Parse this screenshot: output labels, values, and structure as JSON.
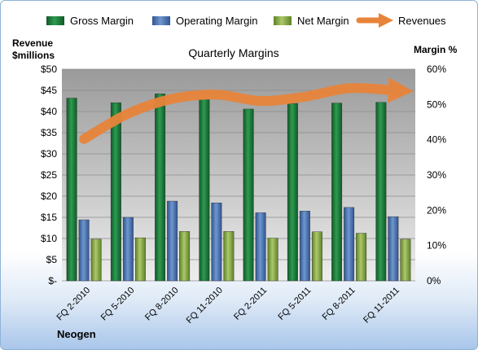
{
  "chart_data": {
    "type": "bar",
    "title": "Quarterly Margins",
    "categories": [
      "FQ 2-2010",
      "FQ 5-2010",
      "FQ 8-2010",
      "FQ 11-2010",
      "FQ 2-2011",
      "FQ 5-2011",
      "FQ 8-2011",
      "FQ 11-2011"
    ],
    "left_axis": {
      "label_line1": "Revenue",
      "label_line2": "$millions",
      "ticks": [
        "$-",
        "$5",
        "$10",
        "$15",
        "$20",
        "$25",
        "$30",
        "$35",
        "$40",
        "$45",
        "$50"
      ],
      "ylim": [
        0,
        50
      ]
    },
    "right_axis": {
      "label": "Margin %",
      "ticks": [
        "0%",
        "10%",
        "20%",
        "30%",
        "40%",
        "50%",
        "60%"
      ],
      "ylim": [
        0,
        60
      ]
    },
    "series": [
      {
        "name": "Gross Margin",
        "axis": "right",
        "kind": "bar",
        "color": "#1e7a3c",
        "values": [
          51.8,
          50.5,
          53.0,
          51.4,
          48.7,
          50.3,
          50.4,
          50.6
        ]
      },
      {
        "name": "Operating Margin",
        "axis": "right",
        "kind": "bar",
        "color": "#4f76b3",
        "values": [
          17.3,
          18.0,
          22.6,
          22.1,
          19.3,
          19.8,
          20.8,
          18.2
        ]
      },
      {
        "name": "Net Margin",
        "axis": "right",
        "kind": "bar",
        "color": "#8aac4a",
        "values": [
          11.8,
          12.2,
          14.0,
          14.0,
          12.1,
          13.9,
          13.5,
          11.8
        ]
      },
      {
        "name": "Revenues",
        "axis": "left",
        "kind": "line",
        "color": "#e8843a",
        "values": [
          33.5,
          39.5,
          43.0,
          44.0,
          42.5,
          43.5,
          45.5,
          45.0
        ]
      }
    ],
    "legend_position": "top",
    "grid": true,
    "footer": "Neogen"
  }
}
